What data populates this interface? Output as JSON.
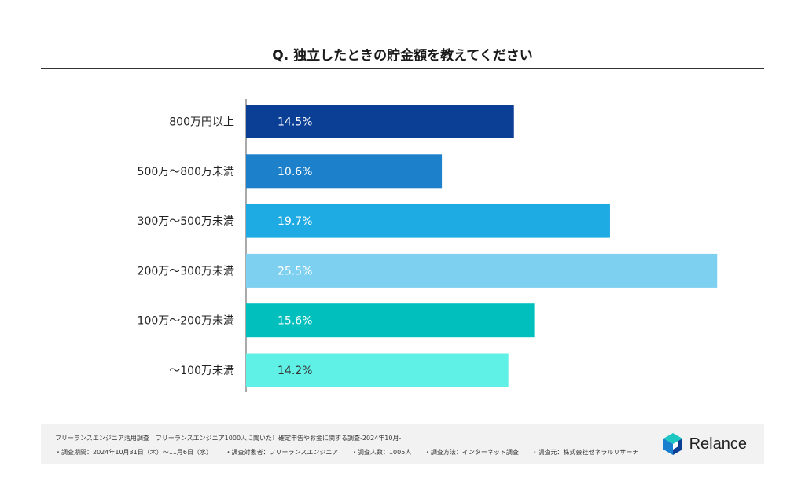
{
  "title": "Q. 独立したときの貯金額を教えてください",
  "chart_data": {
    "type": "bar",
    "orientation": "horizontal",
    "title": "Q. 独立したときの貯金額を教えてください",
    "categories": [
      "800万円以上",
      "500万〜800万未満",
      "300万〜500万未満",
      "200万〜300万未満",
      "100万〜200万未満",
      "〜100万未満"
    ],
    "values": [
      14.5,
      10.6,
      19.7,
      25.5,
      15.6,
      14.2
    ],
    "value_labels": [
      "14.5%",
      "10.6%",
      "19.7%",
      "25.5%",
      "15.6%",
      "14.2%"
    ],
    "colors": [
      "#0b3f96",
      "#1c80cb",
      "#1eaae2",
      "#7ed0f0",
      "#00bfbd",
      "#5ff0e6"
    ],
    "label_colors": [
      "#ffffff",
      "#ffffff",
      "#ffffff",
      "#ffffff",
      "#ffffff",
      "#333333"
    ],
    "xlim": [
      0,
      30
    ],
    "grid": false,
    "legend": "none"
  },
  "footer": {
    "line1": "フリーランスエンジニア活用調査　フリーランスエンジニア1000人に聞いた！確定申告やお金に関する調査-2024年10月-",
    "line2_items": [
      "・調査期間：2024年10月31日（木）〜11月6日（水）",
      "・調査対象者：フリーランスエンジニア",
      "・調査人数：1005人",
      "・調査方法：インターネット調査",
      "・調査元：株式会社ゼネラルリサーチ"
    ]
  },
  "brand": {
    "name": "Relance",
    "icon": "relance-cube-logo-icon",
    "colors": [
      "#1b7fcf",
      "#1ec7c2",
      "#0b3f96"
    ]
  }
}
